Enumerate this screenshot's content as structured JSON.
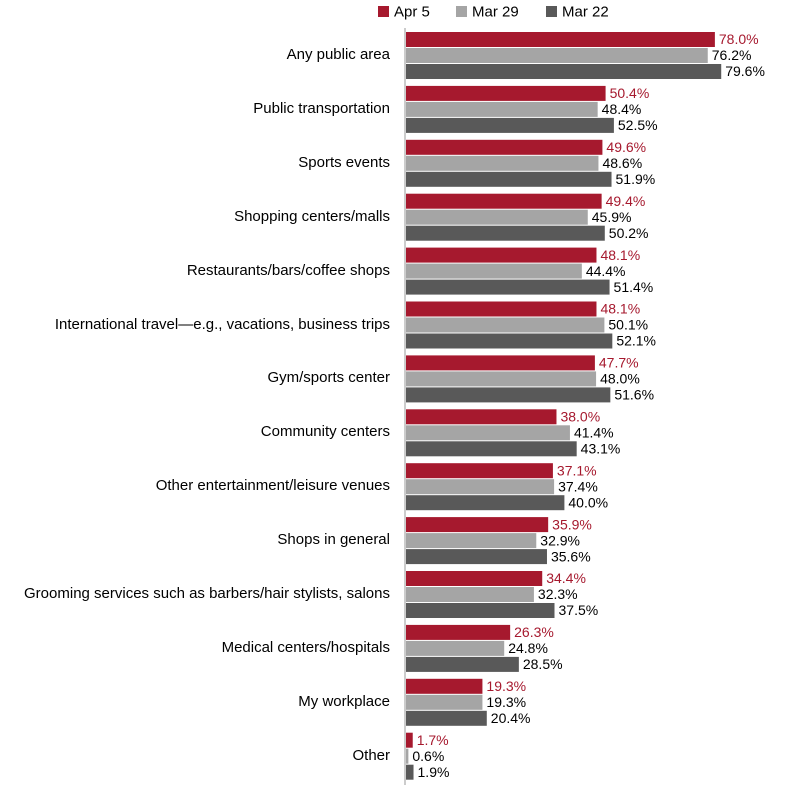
{
  "chart_data": {
    "type": "bar",
    "orientation": "horizontal",
    "categories": [
      "Any public area",
      "Public transportation",
      "Sports events",
      "Shopping centers/malls",
      "Restaurants/bars/coffee shops",
      "International travel—e.g., vacations, business trips",
      "Gym/sports center",
      "Community centers",
      "Other entertainment/leisure venues",
      "Shops in general",
      "Grooming services such as barbers/hair stylists, salons",
      "Medical centers/hospitals",
      "My workplace",
      "Other"
    ],
    "series": [
      {
        "name": "Apr 5",
        "color": "#a6192e",
        "label_color": "#a6192e",
        "values": [
          78.0,
          50.4,
          49.6,
          49.4,
          48.1,
          48.1,
          47.7,
          38.0,
          37.1,
          35.9,
          34.4,
          26.3,
          19.3,
          1.7
        ],
        "value_labels": [
          "78.0%",
          "50.4%",
          "49.6%",
          "49.4%",
          "48.1%",
          "48.1%",
          "47.7%",
          "38.0%",
          "37.1%",
          "35.9%",
          "34.4%",
          "26.3%",
          "19.3%",
          "1.7%"
        ]
      },
      {
        "name": "Mar 29",
        "color": "#a5a5a5",
        "label_color": "#000000",
        "values": [
          76.2,
          48.4,
          48.6,
          45.9,
          44.4,
          50.1,
          48.0,
          41.4,
          37.4,
          32.9,
          32.3,
          24.8,
          19.3,
          0.6
        ],
        "value_labels": [
          "76.2%",
          "48.4%",
          "48.6%",
          "45.9%",
          "44.4%",
          "50.1%",
          "48.0%",
          "41.4%",
          "37.4%",
          "32.9%",
          "32.3%",
          "24.8%",
          "19.3%",
          "0.6%"
        ]
      },
      {
        "name": "Mar 22",
        "color": "#595959",
        "label_color": "#000000",
        "values": [
          79.6,
          52.5,
          51.9,
          50.2,
          51.4,
          52.1,
          51.6,
          43.1,
          40.0,
          35.6,
          37.5,
          28.5,
          20.4,
          1.9
        ],
        "value_labels": [
          "79.6%",
          "52.5%",
          "51.9%",
          "50.2%",
          "51.4%",
          "52.1%",
          "51.6%",
          "43.1%",
          "40.0%",
          "35.6%",
          "37.5%",
          "28.5%",
          "20.4%",
          "1.9%"
        ]
      }
    ],
    "legend": "top"
  }
}
